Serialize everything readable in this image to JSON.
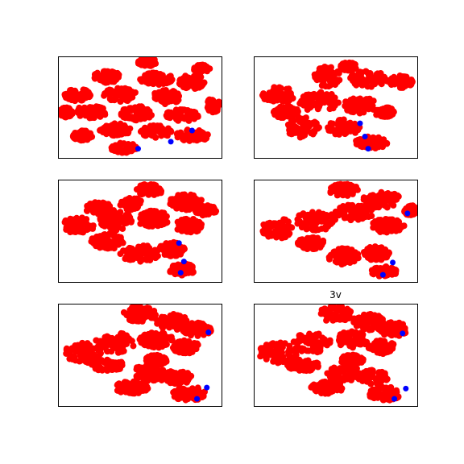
{
  "chart_data": [
    {
      "type": "scatter",
      "title": "",
      "xticks": false,
      "yticks": false,
      "colors": {
        "main": "#ff0000",
        "highlight": "#0000ff"
      },
      "main_clusters": [
        [
          0.55,
          0.06,
          0.06,
          0.04
        ],
        [
          0.3,
          0.2,
          0.08,
          0.06
        ],
        [
          0.6,
          0.22,
          0.1,
          0.06
        ],
        [
          0.82,
          0.25,
          0.08,
          0.07
        ],
        [
          0.12,
          0.38,
          0.08,
          0.06
        ],
        [
          0.38,
          0.38,
          0.1,
          0.07
        ],
        [
          0.66,
          0.4,
          0.09,
          0.07
        ],
        [
          0.95,
          0.48,
          0.04,
          0.07
        ],
        [
          0.2,
          0.55,
          0.1,
          0.06
        ],
        [
          0.48,
          0.56,
          0.1,
          0.07
        ],
        [
          0.76,
          0.58,
          0.1,
          0.06
        ],
        [
          0.35,
          0.72,
          0.1,
          0.06
        ],
        [
          0.6,
          0.74,
          0.1,
          0.06
        ],
        [
          0.82,
          0.78,
          0.1,
          0.06
        ],
        [
          0.4,
          0.9,
          0.08,
          0.05
        ],
        [
          0.15,
          0.78,
          0.06,
          0.05
        ],
        [
          0.88,
          0.12,
          0.05,
          0.04
        ],
        [
          0.05,
          0.55,
          0.04,
          0.05
        ]
      ],
      "highlight_points": [
        [
          0.82,
          0.73
        ],
        [
          0.69,
          0.84
        ],
        [
          0.49,
          0.91
        ]
      ]
    },
    {
      "type": "scatter",
      "title": "",
      "xticks": false,
      "yticks": false,
      "colors": {
        "main": "#ff0000",
        "highlight": "#0000ff"
      },
      "main_clusters": [
        [
          0.45,
          0.2,
          0.08,
          0.1
        ],
        [
          0.7,
          0.22,
          0.12,
          0.08
        ],
        [
          0.9,
          0.25,
          0.07,
          0.06
        ],
        [
          0.15,
          0.38,
          0.1,
          0.08
        ],
        [
          0.4,
          0.45,
          0.12,
          0.1
        ],
        [
          0.65,
          0.48,
          0.1,
          0.08
        ],
        [
          0.3,
          0.7,
          0.1,
          0.1
        ],
        [
          0.55,
          0.7,
          0.1,
          0.08
        ],
        [
          0.72,
          0.85,
          0.1,
          0.06
        ],
        [
          0.2,
          0.55,
          0.08,
          0.06
        ],
        [
          0.8,
          0.55,
          0.06,
          0.05
        ],
        [
          0.58,
          0.1,
          0.05,
          0.04
        ]
      ],
      "highlight_points": [
        [
          0.65,
          0.66
        ],
        [
          0.68,
          0.79
        ],
        [
          0.7,
          0.91
        ]
      ]
    },
    {
      "type": "scatter",
      "title": "",
      "xticks": false,
      "yticks": false,
      "colors": {
        "main": "#ff0000",
        "highlight": "#0000ff"
      },
      "main_clusters": [
        [
          0.56,
          0.1,
          0.08,
          0.06
        ],
        [
          0.78,
          0.22,
          0.1,
          0.08
        ],
        [
          0.9,
          0.3,
          0.07,
          0.05
        ],
        [
          0.12,
          0.45,
          0.1,
          0.08
        ],
        [
          0.35,
          0.4,
          0.1,
          0.1
        ],
        [
          0.58,
          0.38,
          0.1,
          0.08
        ],
        [
          0.8,
          0.45,
          0.08,
          0.07
        ],
        [
          0.3,
          0.6,
          0.1,
          0.08
        ],
        [
          0.5,
          0.72,
          0.12,
          0.08
        ],
        [
          0.7,
          0.68,
          0.08,
          0.07
        ],
        [
          0.76,
          0.88,
          0.08,
          0.06
        ],
        [
          0.25,
          0.28,
          0.08,
          0.06
        ],
        [
          0.45,
          0.24,
          0.07,
          0.06
        ]
      ],
      "highlight_points": [
        [
          0.74,
          0.62
        ],
        [
          0.77,
          0.8
        ],
        [
          0.75,
          0.91
        ]
      ]
    },
    {
      "type": "scatter",
      "title": "",
      "xticks": false,
      "yticks": false,
      "colors": {
        "main": "#ff0000",
        "highlight": "#0000ff"
      },
      "main_clusters": [
        [
          0.55,
          0.1,
          0.09,
          0.06
        ],
        [
          0.78,
          0.2,
          0.12,
          0.08
        ],
        [
          0.96,
          0.3,
          0.04,
          0.05
        ],
        [
          0.15,
          0.48,
          0.1,
          0.1
        ],
        [
          0.38,
          0.4,
          0.12,
          0.1
        ],
        [
          0.62,
          0.32,
          0.12,
          0.08
        ],
        [
          0.82,
          0.45,
          0.1,
          0.07
        ],
        [
          0.35,
          0.62,
          0.08,
          0.06
        ],
        [
          0.55,
          0.75,
          0.1,
          0.08
        ],
        [
          0.75,
          0.72,
          0.08,
          0.07
        ],
        [
          0.8,
          0.9,
          0.08,
          0.05
        ]
      ],
      "highlight_points": [
        [
          0.94,
          0.33
        ],
        [
          0.85,
          0.81
        ],
        [
          0.79,
          0.93
        ]
      ]
    },
    {
      "type": "scatter",
      "title": "",
      "xticks": false,
      "yticks": false,
      "colors": {
        "main": "#ff0000",
        "highlight": "#0000ff"
      },
      "main_clusters": [
        [
          0.5,
          0.1,
          0.1,
          0.08
        ],
        [
          0.7,
          0.18,
          0.1,
          0.08
        ],
        [
          0.85,
          0.25,
          0.09,
          0.07
        ],
        [
          0.15,
          0.48,
          0.12,
          0.1
        ],
        [
          0.35,
          0.38,
          0.12,
          0.1
        ],
        [
          0.6,
          0.35,
          0.1,
          0.08
        ],
        [
          0.78,
          0.42,
          0.08,
          0.07
        ],
        [
          0.3,
          0.6,
          0.1,
          0.06
        ],
        [
          0.55,
          0.68,
          0.1,
          0.08
        ],
        [
          0.72,
          0.72,
          0.1,
          0.07
        ],
        [
          0.8,
          0.88,
          0.1,
          0.07
        ],
        [
          0.45,
          0.82,
          0.1,
          0.06
        ],
        [
          0.6,
          0.55,
          0.07,
          0.05
        ]
      ],
      "highlight_points": [
        [
          0.92,
          0.28
        ],
        [
          0.91,
          0.82
        ],
        [
          0.85,
          0.93
        ]
      ]
    },
    {
      "type": "scatter",
      "title": "3v",
      "xticks": false,
      "yticks": false,
      "colors": {
        "main": "#ff0000",
        "highlight": "#0000ff"
      },
      "main_clusters": [
        [
          0.5,
          0.1,
          0.1,
          0.08
        ],
        [
          0.7,
          0.18,
          0.1,
          0.08
        ],
        [
          0.85,
          0.25,
          0.09,
          0.07
        ],
        [
          0.15,
          0.48,
          0.12,
          0.1
        ],
        [
          0.35,
          0.38,
          0.12,
          0.1
        ],
        [
          0.6,
          0.35,
          0.1,
          0.08
        ],
        [
          0.78,
          0.42,
          0.08,
          0.07
        ],
        [
          0.3,
          0.6,
          0.1,
          0.06
        ],
        [
          0.55,
          0.68,
          0.1,
          0.08
        ],
        [
          0.72,
          0.72,
          0.1,
          0.07
        ],
        [
          0.8,
          0.88,
          0.1,
          0.07
        ],
        [
          0.45,
          0.82,
          0.1,
          0.06
        ],
        [
          0.6,
          0.55,
          0.07,
          0.05
        ]
      ],
      "highlight_points": [
        [
          0.91,
          0.29
        ],
        [
          0.93,
          0.83
        ],
        [
          0.86,
          0.93
        ]
      ]
    }
  ]
}
